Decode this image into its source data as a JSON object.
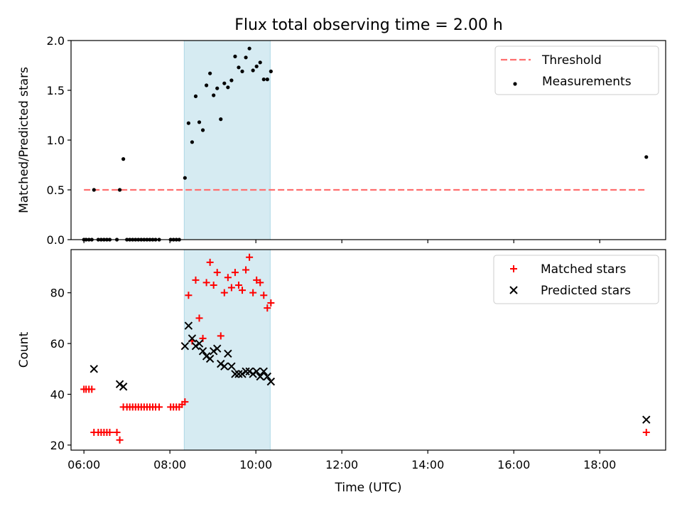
{
  "figure": {
    "title": "Flux total observing time = 2.00 h"
  },
  "chart_data": [
    {
      "panel": "top",
      "type": "scatter",
      "xlabel": "",
      "ylabel": "Matched/Predicted stars",
      "xlim": [
        "05:42",
        "19:32"
      ],
      "ylim": [
        0,
        2.0
      ],
      "yticks": [
        0.0,
        0.5,
        1.0,
        1.5,
        2.0
      ],
      "ytick_labels": [
        "0.0",
        "0.5",
        "1.0",
        "1.5",
        "2.0"
      ],
      "grid": false,
      "legend_position": "top-right",
      "shaded_interval": {
        "x": [
          "08:20",
          "10:20"
        ],
        "color": "#add8e6"
      },
      "threshold": {
        "name": "Threshold",
        "y": 0.5,
        "x": [
          "06:00",
          "19:05"
        ],
        "color": "#ff6f6f",
        "style": "dashed"
      },
      "series": [
        {
          "name": "Measurements",
          "marker": "dot",
          "color": "#000000",
          "points": [
            [
              "06:00",
              0.0
            ],
            [
              "06:03",
              0.0
            ],
            [
              "06:07",
              0.0
            ],
            [
              "06:11",
              0.0
            ],
            [
              "06:14",
              0.5
            ],
            [
              "06:20",
              0.0
            ],
            [
              "06:24",
              0.0
            ],
            [
              "06:28",
              0.0
            ],
            [
              "06:32",
              0.0
            ],
            [
              "06:36",
              0.0
            ],
            [
              "06:46",
              0.0
            ],
            [
              "06:50",
              0.5
            ],
            [
              "06:55",
              0.81
            ],
            [
              "07:00",
              0.0
            ],
            [
              "07:04",
              0.0
            ],
            [
              "07:08",
              0.0
            ],
            [
              "07:12",
              0.0
            ],
            [
              "07:16",
              0.0
            ],
            [
              "07:20",
              0.0
            ],
            [
              "07:24",
              0.0
            ],
            [
              "07:28",
              0.0
            ],
            [
              "07:32",
              0.0
            ],
            [
              "07:36",
              0.0
            ],
            [
              "07:40",
              0.0
            ],
            [
              "07:45",
              0.0
            ],
            [
              "08:01",
              0.0
            ],
            [
              "08:05",
              0.0
            ],
            [
              "08:09",
              0.0
            ],
            [
              "08:13",
              0.0
            ],
            [
              "08:21",
              0.62
            ],
            [
              "08:26",
              1.17
            ],
            [
              "08:31",
              0.98
            ],
            [
              "08:36",
              1.44
            ],
            [
              "08:41",
              1.18
            ],
            [
              "08:46",
              1.1
            ],
            [
              "08:51",
              1.55
            ],
            [
              "08:56",
              1.67
            ],
            [
              "09:01",
              1.45
            ],
            [
              "09:06",
              1.52
            ],
            [
              "09:11",
              1.21
            ],
            [
              "09:16",
              1.57
            ],
            [
              "09:21",
              1.53
            ],
            [
              "09:26",
              1.6
            ],
            [
              "09:31",
              1.84
            ],
            [
              "09:36",
              1.73
            ],
            [
              "09:41",
              1.69
            ],
            [
              "09:46",
              1.83
            ],
            [
              "09:51",
              1.92
            ],
            [
              "09:56",
              1.7
            ],
            [
              "10:01",
              1.74
            ],
            [
              "10:06",
              1.78
            ],
            [
              "10:11",
              1.61
            ],
            [
              "10:16",
              1.61
            ],
            [
              "10:21",
              1.69
            ],
            [
              "19:05",
              0.83
            ]
          ]
        }
      ]
    },
    {
      "panel": "bottom",
      "type": "scatter",
      "xlabel": "Time (UTC)",
      "ylabel": "Count",
      "xlim": [
        "05:42",
        "19:32"
      ],
      "ylim": [
        18,
        97
      ],
      "yticks": [
        20,
        40,
        60,
        80
      ],
      "ytick_labels": [
        "20",
        "40",
        "60",
        "80"
      ],
      "xticks": [
        "06:00",
        "08:00",
        "10:00",
        "12:00",
        "14:00",
        "16:00",
        "18:00"
      ],
      "xtick_labels": [
        "06:00",
        "08:00",
        "10:00",
        "12:00",
        "14:00",
        "16:00",
        "18:00"
      ],
      "grid": false,
      "legend_position": "top-right",
      "shaded_interval": {
        "x": [
          "08:20",
          "10:20"
        ],
        "color": "#add8e6"
      },
      "series": [
        {
          "name": "Matched stars",
          "marker": "plus",
          "color": "#ff0000",
          "points": [
            [
              "06:00",
              42
            ],
            [
              "06:03",
              42
            ],
            [
              "06:07",
              42
            ],
            [
              "06:11",
              42
            ],
            [
              "06:14",
              25
            ],
            [
              "06:20",
              25
            ],
            [
              "06:24",
              25
            ],
            [
              "06:28",
              25
            ],
            [
              "06:32",
              25
            ],
            [
              "06:36",
              25
            ],
            [
              "06:46",
              25
            ],
            [
              "06:50",
              22
            ],
            [
              "06:55",
              35
            ],
            [
              "07:00",
              35
            ],
            [
              "07:04",
              35
            ],
            [
              "07:08",
              35
            ],
            [
              "07:12",
              35
            ],
            [
              "07:16",
              35
            ],
            [
              "07:20",
              35
            ],
            [
              "07:24",
              35
            ],
            [
              "07:28",
              35
            ],
            [
              "07:32",
              35
            ],
            [
              "07:36",
              35
            ],
            [
              "07:40",
              35
            ],
            [
              "07:45",
              35
            ],
            [
              "08:01",
              35
            ],
            [
              "08:05",
              35
            ],
            [
              "08:09",
              35
            ],
            [
              "08:13",
              35
            ],
            [
              "08:17",
              36
            ],
            [
              "08:21",
              37
            ],
            [
              "08:26",
              79
            ],
            [
              "08:31",
              61
            ],
            [
              "08:36",
              85
            ],
            [
              "08:41",
              70
            ],
            [
              "08:46",
              62
            ],
            [
              "08:51",
              84
            ],
            [
              "08:56",
              92
            ],
            [
              "09:01",
              83
            ],
            [
              "09:06",
              88
            ],
            [
              "09:11",
              63
            ],
            [
              "09:16",
              80
            ],
            [
              "09:21",
              86
            ],
            [
              "09:26",
              82
            ],
            [
              "09:31",
              88
            ],
            [
              "09:36",
              83
            ],
            [
              "09:41",
              81
            ],
            [
              "09:46",
              89
            ],
            [
              "09:51",
              94
            ],
            [
              "09:56",
              80
            ],
            [
              "10:01",
              85
            ],
            [
              "10:06",
              84
            ],
            [
              "10:11",
              79
            ],
            [
              "10:16",
              74
            ],
            [
              "10:21",
              76
            ],
            [
              "19:05",
              25
            ]
          ]
        },
        {
          "name": "Predicted stars",
          "marker": "x",
          "color": "#000000",
          "points": [
            [
              "06:14",
              50
            ],
            [
              "06:50",
              44
            ],
            [
              "06:55",
              43
            ],
            [
              "08:21",
              59
            ],
            [
              "08:26",
              67
            ],
            [
              "08:31",
              62
            ],
            [
              "08:36",
              59
            ],
            [
              "08:41",
              60
            ],
            [
              "08:46",
              57
            ],
            [
              "08:51",
              55
            ],
            [
              "08:56",
              54
            ],
            [
              "09:01",
              57
            ],
            [
              "09:06",
              58
            ],
            [
              "09:11",
              52
            ],
            [
              "09:16",
              51
            ],
            [
              "09:21",
              56
            ],
            [
              "09:26",
              51
            ],
            [
              "09:31",
              48
            ],
            [
              "09:36",
              48
            ],
            [
              "09:41",
              48
            ],
            [
              "09:46",
              49
            ],
            [
              "09:51",
              49
            ],
            [
              "09:56",
              48
            ],
            [
              "10:01",
              49
            ],
            [
              "10:06",
              47
            ],
            [
              "10:11",
              49
            ],
            [
              "10:16",
              47
            ],
            [
              "10:21",
              45
            ],
            [
              "19:05",
              30
            ]
          ]
        }
      ]
    }
  ]
}
